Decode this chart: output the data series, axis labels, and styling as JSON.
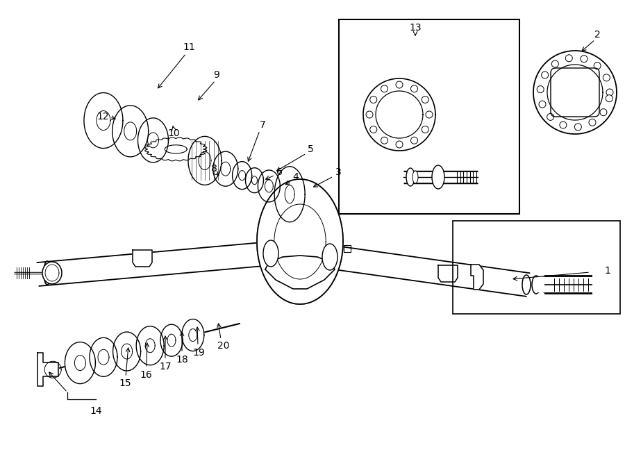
{
  "bg_color": "#ffffff",
  "line_color": "#000000",
  "label_color": "#000000",
  "fig_width": 9.0,
  "fig_height": 6.61
}
